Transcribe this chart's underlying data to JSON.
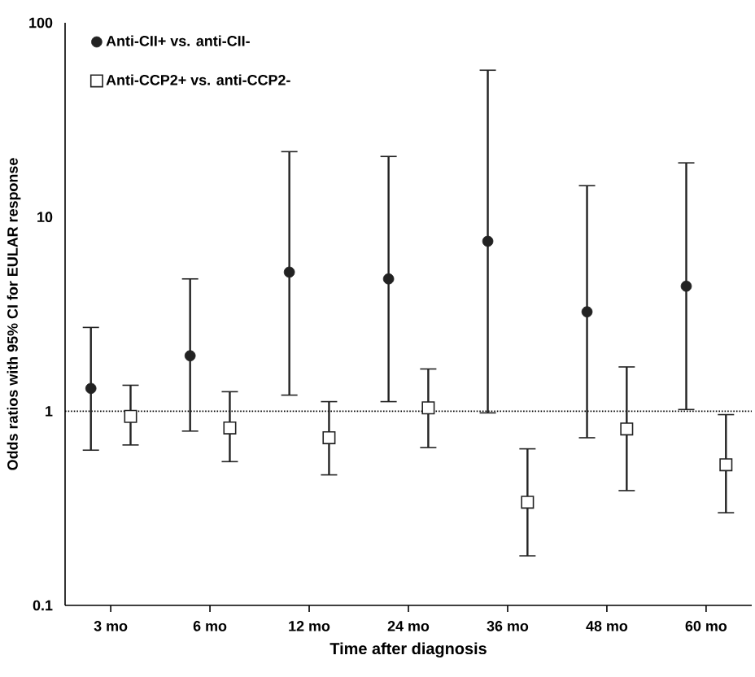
{
  "chart_data": {
    "type": "scatter",
    "xlabel": "Time after diagnosis",
    "ylabel": "Odds ratios with 95% CI for EULAR response",
    "categories": [
      "3 mo",
      "6 mo",
      "12 mo",
      "24 mo",
      "36 mo",
      "48 mo",
      "60 mo"
    ],
    "series": [
      {
        "name": "Anti-CII+ vs. anti-CII-",
        "color": "#222222",
        "marker": "circle",
        "values": [
          1.31,
          1.93,
          5.2,
          4.8,
          7.5,
          3.25,
          4.4
        ],
        "errors": [
          [
            0.63,
            2.7
          ],
          [
            0.79,
            4.8
          ],
          [
            1.21,
            21.7
          ],
          [
            1.12,
            20.5
          ],
          [
            0.98,
            57
          ],
          [
            0.73,
            14.5
          ],
          [
            1.02,
            19
          ]
        ]
      },
      {
        "name": "Anti-CCP2+ vs. anti-CCP2-",
        "color": "#222222",
        "marker": "square",
        "values": [
          0.94,
          0.82,
          0.73,
          1.04,
          0.34,
          0.81,
          0.53
        ],
        "errors": [
          [
            0.67,
            1.36
          ],
          [
            0.55,
            1.26
          ],
          [
            0.47,
            1.12
          ],
          [
            0.65,
            1.65
          ],
          [
            0.18,
            0.64
          ],
          [
            0.39,
            1.69
          ],
          [
            0.3,
            0.96
          ]
        ]
      }
    ],
    "log": "y",
    "ylim": [
      0.1,
      100
    ],
    "yticks": [
      0.1,
      1,
      10,
      100
    ],
    "ref_lines": [
      {
        "axis": "y",
        "value": 1,
        "line_style": "dotted"
      }
    ],
    "legend": "top left"
  }
}
